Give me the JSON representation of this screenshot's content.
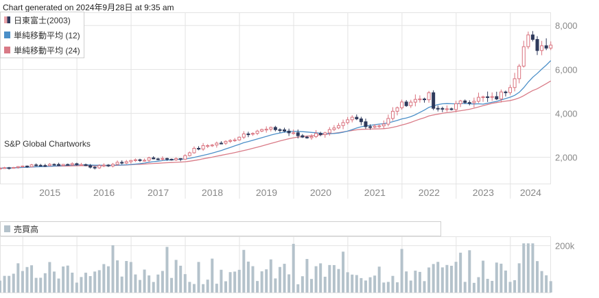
{
  "header": {
    "generated_label": "Chart generated on 2024年9月28日 at 9:35 am"
  },
  "watermark": "S&P Global Chartworks",
  "colors": {
    "up": "#e9a3a9",
    "down": "#2e3a5c",
    "ma12": "#4b8fc8",
    "ma24": "#d97a86",
    "volume": "#b4c2cb",
    "grid": "#e3e3e3",
    "axis_text": "#888888"
  },
  "chart_data": [
    {
      "type": "candlestick",
      "legend": [
        {
          "name": "日東富士(2003)",
          "swatch": "candle"
        },
        {
          "name": "単純移動平均 (12)",
          "swatch": "ma12"
        },
        {
          "name": "単純移動平均 (24)",
          "swatch": "ma24"
        }
      ],
      "legend_placement": "top-left",
      "y_ticks": [
        2000,
        4000,
        6000,
        8000
      ],
      "y_tick_labels": [
        "2,000",
        "4,000",
        "6,000",
        "8,000"
      ],
      "ylim": [
        800,
        8600
      ],
      "x_start": 2014.58,
      "x_end": 2024.75,
      "x_tick_labels": [
        "2015",
        "2016",
        "2017",
        "2018",
        "2019",
        "2020",
        "2021",
        "2022",
        "2023",
        "2024"
      ],
      "grid": true,
      "anchors": [
        [
          2014.58,
          1500
        ],
        [
          2015.0,
          1600
        ],
        [
          2015.5,
          1650
        ],
        [
          2016.0,
          1700
        ],
        [
          2016.3,
          1550
        ],
        [
          2016.5,
          1600
        ],
        [
          2017.0,
          1850
        ],
        [
          2017.5,
          1950
        ],
        [
          2017.9,
          1900
        ],
        [
          2018.1,
          2300
        ],
        [
          2018.5,
          2600
        ],
        [
          2018.8,
          2700
        ],
        [
          2019.1,
          3100
        ],
        [
          2019.3,
          3200
        ],
        [
          2019.7,
          3300
        ],
        [
          2020.0,
          3050
        ],
        [
          2020.2,
          2900
        ],
        [
          2020.5,
          3100
        ],
        [
          2020.8,
          3300
        ],
        [
          2021.1,
          3800
        ],
        [
          2021.4,
          3400
        ],
        [
          2021.7,
          3550
        ],
        [
          2021.9,
          4300
        ],
        [
          2022.1,
          4500
        ],
        [
          2022.5,
          4800
        ],
        [
          2022.6,
          4100
        ],
        [
          2022.9,
          4250
        ],
        [
          2023.2,
          4600
        ],
        [
          2023.5,
          4700
        ],
        [
          2023.7,
          4650
        ],
        [
          2023.9,
          5000
        ],
        [
          2024.05,
          5500
        ],
        [
          2024.2,
          6600
        ],
        [
          2024.3,
          7500
        ],
        [
          2024.5,
          7000
        ],
        [
          2024.7,
          7200
        ]
      ]
    },
    {
      "type": "bar",
      "legend": [
        {
          "name": "売買高",
          "swatch": "volume"
        }
      ],
      "legend_placement": "top-left",
      "y_ticks": [
        200000
      ],
      "y_tick_labels": [
        "200k"
      ],
      "ylim": [
        0,
        240000
      ],
      "x_start": 2014.58,
      "x_end": 2024.75
    }
  ]
}
